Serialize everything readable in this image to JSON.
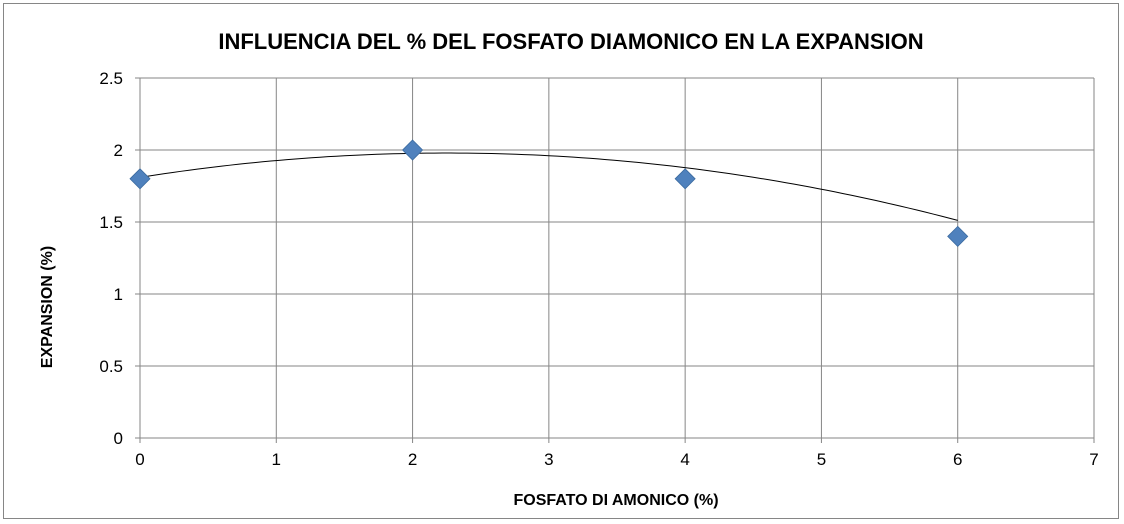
{
  "chart_data": {
    "type": "scatter",
    "title": "INFLUENCIA DEL % DEL FOSFATO DIAMONICO EN LA EXPANSION",
    "xlabel": "FOSFATO DI AMONICO (%)",
    "ylabel": "EXPANSION (%)",
    "xlim": [
      0,
      7
    ],
    "ylim": [
      0,
      2.5
    ],
    "x_ticks": [
      "0",
      "1",
      "2",
      "3",
      "4",
      "5",
      "6",
      "7"
    ],
    "y_ticks": [
      "0",
      "0.5",
      "1",
      "1.5",
      "2",
      "2.5"
    ],
    "grid": true,
    "legend": "none",
    "series": [
      {
        "marker": "diamond",
        "color": "#4f81bd",
        "points": [
          {
            "x": 0,
            "y": 1.8
          },
          {
            "x": 2,
            "y": 2.0
          },
          {
            "x": 4,
            "y": 1.8
          },
          {
            "x": 6,
            "y": 1.4
          }
        ]
      }
    ],
    "trendline": {
      "type": "polynomial-2",
      "color": "#000000",
      "coefficients": [
        1.81,
        0.15,
        -0.0333
      ]
    }
  }
}
